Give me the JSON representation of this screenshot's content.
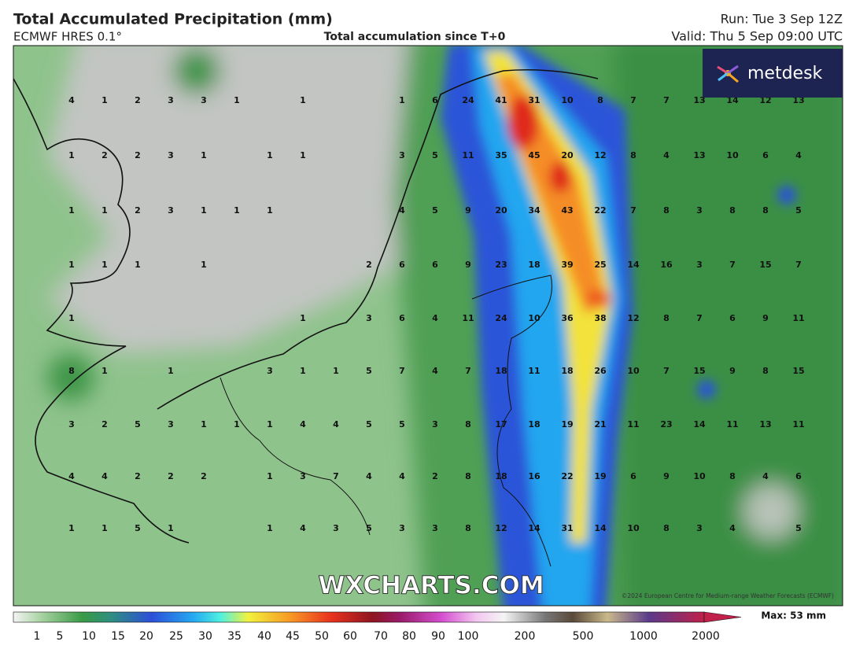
{
  "header": {
    "title": "Total Accumulated Precipitation (mm)",
    "model": "ECMWF HRES 0.1°",
    "subtitle": "Total accumulation since T+0",
    "run": "Run: Tue 3 Sep 12Z",
    "valid": "Valid: Thu 5 Sep 09:00 UTC"
  },
  "logo": "metdesk",
  "watermark": "WXCHARTS.COM",
  "copyright": "©2024 European Centre for Medium-range Weather Forecasts (ECMWF)",
  "grid": {
    "rows": [
      [
        4,
        1,
        2,
        3,
        3,
        1,
        null,
        1,
        null,
        null,
        1,
        6,
        24,
        41,
        31,
        10,
        8,
        7,
        7,
        13,
        14,
        12,
        13
      ],
      [
        1,
        2,
        2,
        3,
        1,
        null,
        1,
        1,
        null,
        null,
        3,
        5,
        11,
        35,
        45,
        20,
        12,
        8,
        4,
        13,
        10,
        6,
        4
      ],
      [
        1,
        1,
        2,
        3,
        1,
        1,
        1,
        null,
        null,
        null,
        4,
        5,
        9,
        20,
        34,
        43,
        22,
        7,
        8,
        3,
        8,
        8,
        5
      ],
      [
        1,
        1,
        1,
        null,
        1,
        null,
        null,
        null,
        null,
        2,
        6,
        6,
        9,
        23,
        18,
        39,
        25,
        14,
        16,
        3,
        7,
        15,
        7
      ],
      [
        1,
        null,
        null,
        null,
        null,
        null,
        null,
        1,
        null,
        3,
        6,
        4,
        11,
        24,
        10,
        36,
        38,
        12,
        8,
        7,
        6,
        9,
        11
      ],
      [
        8,
        1,
        null,
        1,
        null,
        null,
        3,
        1,
        1,
        5,
        7,
        4,
        7,
        18,
        11,
        18,
        26,
        10,
        7,
        15,
        9,
        8,
        15
      ],
      [
        3,
        2,
        5,
        3,
        1,
        1,
        1,
        4,
        4,
        5,
        5,
        3,
        8,
        17,
        18,
        19,
        21,
        11,
        23,
        14,
        11,
        13,
        11
      ],
      [
        4,
        4,
        2,
        2,
        2,
        null,
        1,
        3,
        7,
        4,
        4,
        2,
        8,
        18,
        16,
        22,
        19,
        6,
        9,
        10,
        8,
        4,
        6
      ],
      [
        1,
        1,
        5,
        1,
        null,
        null,
        1,
        4,
        3,
        5,
        3,
        3,
        8,
        12,
        14,
        31,
        14,
        10,
        8,
        3,
        4,
        null,
        5
      ]
    ]
  },
  "colorbar": {
    "labels": [
      1,
      5,
      10,
      15,
      20,
      25,
      30,
      35,
      40,
      45,
      50,
      60,
      70,
      80,
      90,
      100,
      200,
      500,
      1000,
      2000
    ],
    "max": "Max: 53 mm"
  }
}
